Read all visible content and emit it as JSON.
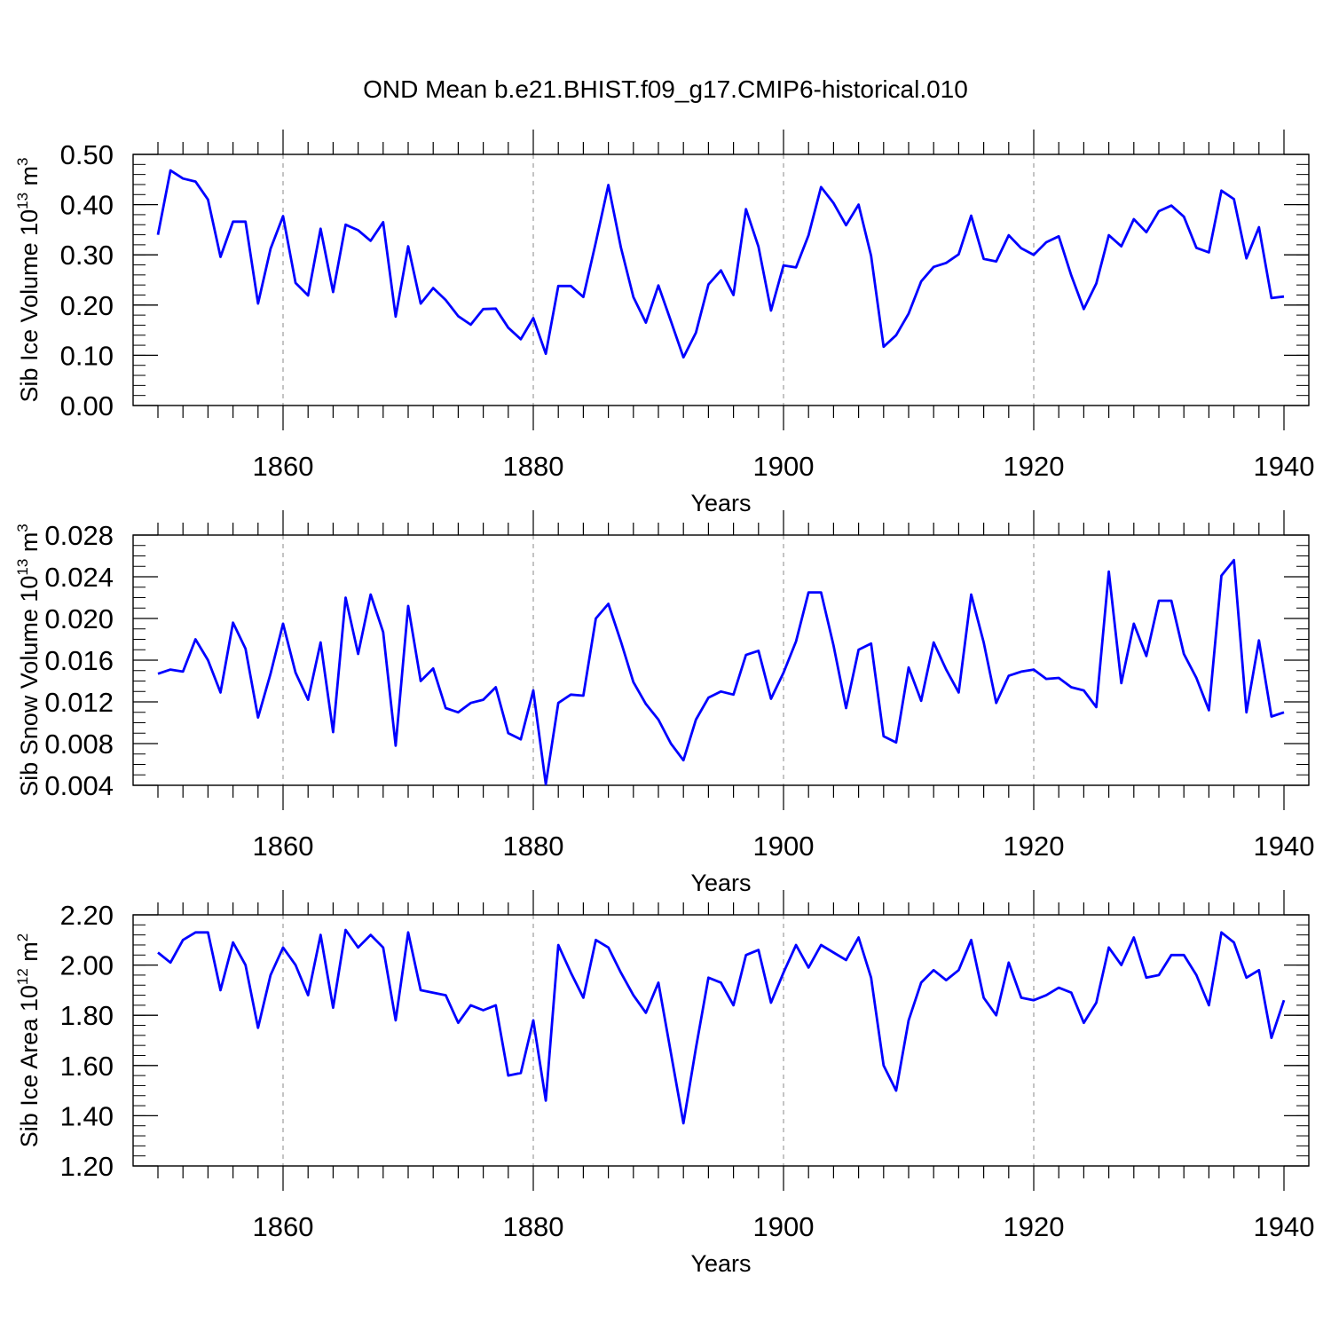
{
  "title": "OND Mean b.e21.BHIST.f09_g17.CMIP6-historical.010",
  "line_color": "#0000ff",
  "chart_data": [
    {
      "type": "line",
      "ylabel_main": "Sib Ice Volume 10",
      "ylabel_exp": "13",
      "ylabel_unit": "m",
      "ylabel_unit_exp": "3",
      "xlabel": "Years",
      "xlim": [
        1850,
        1940
      ],
      "ylim": [
        0.0,
        0.5
      ],
      "ymajor": [
        0.0,
        0.1,
        0.2,
        0.3,
        0.4,
        0.5
      ],
      "ytick_labels": [
        "0.00",
        "0.10",
        "0.20",
        "0.30",
        "0.40",
        "0.50"
      ],
      "yminor_step": 0.02,
      "xticks": [
        1860,
        1880,
        1900,
        1920,
        1940
      ],
      "xtick_labels": [
        "1860",
        "1880",
        "1900",
        "1920",
        "1940"
      ],
      "grid": "vertical dashed at 1860, 1880, 1900, 1920",
      "x_start": 1850,
      "series": [
        {
          "values": [
            0.34,
            0.468,
            0.452,
            0.446,
            0.41,
            0.296,
            0.366,
            0.366,
            0.203,
            0.312,
            0.377,
            0.244,
            0.219,
            0.352,
            0.226,
            0.36,
            0.349,
            0.328,
            0.365,
            0.177,
            0.317,
            0.203,
            0.234,
            0.21,
            0.178,
            0.161,
            0.192,
            0.193,
            0.155,
            0.132,
            0.174,
            0.103,
            0.238,
            0.238,
            0.216,
            0.325,
            0.439,
            0.315,
            0.216,
            0.165,
            0.239,
            0.168,
            0.096,
            0.145,
            0.241,
            0.269,
            0.22,
            0.391,
            0.316,
            0.189,
            0.279,
            0.275,
            0.339,
            0.435,
            0.403,
            0.359,
            0.4,
            0.298,
            0.117,
            0.14,
            0.183,
            0.247,
            0.276,
            0.284,
            0.301,
            0.378,
            0.292,
            0.287,
            0.339,
            0.313,
            0.3,
            0.325,
            0.337,
            0.259,
            0.192,
            0.243,
            0.339,
            0.317,
            0.371,
            0.345,
            0.387,
            0.398,
            0.376,
            0.314,
            0.305,
            0.428,
            0.411,
            0.293,
            0.355,
            0.214,
            0.217
          ]
        }
      ]
    },
    {
      "type": "line",
      "ylabel_main": "Sib Snow Volume 10",
      "ylabel_exp": "13",
      "ylabel_unit": "m",
      "ylabel_unit_exp": "3",
      "xlabel": "Years",
      "xlim": [
        1850,
        1940
      ],
      "ylim": [
        0.004,
        0.028
      ],
      "ymajor": [
        0.004,
        0.008,
        0.012,
        0.016,
        0.02,
        0.024,
        0.028
      ],
      "ytick_labels": [
        "0.004",
        "0.008",
        "0.012",
        "0.016",
        "0.020",
        "0.024",
        "0.028"
      ],
      "yminor_step": 0.001,
      "xticks": [
        1860,
        1880,
        1900,
        1920,
        1940
      ],
      "xtick_labels": [
        "1860",
        "1880",
        "1900",
        "1920",
        "1940"
      ],
      "grid": "vertical dashed at 1860, 1880, 1900, 1920",
      "x_start": 1850,
      "series": [
        {
          "values": [
            0.0147,
            0.0151,
            0.0149,
            0.018,
            0.016,
            0.0129,
            0.0196,
            0.0171,
            0.0105,
            0.0147,
            0.0195,
            0.0148,
            0.0122,
            0.0177,
            0.0091,
            0.022,
            0.0166,
            0.0223,
            0.0187,
            0.0078,
            0.0212,
            0.014,
            0.0152,
            0.0114,
            0.011,
            0.0119,
            0.0122,
            0.0134,
            0.009,
            0.0084,
            0.0131,
            0.0041,
            0.0119,
            0.0127,
            0.0126,
            0.02,
            0.0214,
            0.0178,
            0.0139,
            0.0118,
            0.0103,
            0.008,
            0.0064,
            0.0103,
            0.0124,
            0.013,
            0.0127,
            0.0165,
            0.0169,
            0.0123,
            0.0148,
            0.0178,
            0.0225,
            0.0225,
            0.0174,
            0.0114,
            0.017,
            0.0176,
            0.0087,
            0.0081,
            0.0153,
            0.0121,
            0.0177,
            0.0151,
            0.0129,
            0.0223,
            0.0177,
            0.0119,
            0.0145,
            0.0149,
            0.0151,
            0.0142,
            0.0143,
            0.0134,
            0.0131,
            0.0115,
            0.0245,
            0.0138,
            0.0195,
            0.0164,
            0.0217,
            0.0217,
            0.0166,
            0.0143,
            0.0112,
            0.0241,
            0.0256,
            0.011,
            0.0179,
            0.0106,
            0.011
          ]
        }
      ]
    },
    {
      "type": "line",
      "ylabel_main": "Sib Ice Area 10",
      "ylabel_exp": "12",
      "ylabel_unit": "m",
      "ylabel_unit_exp": "2",
      "xlabel": "Years",
      "xlim": [
        1850,
        1940
      ],
      "ylim": [
        1.2,
        2.2
      ],
      "ymajor": [
        1.2,
        1.4,
        1.6,
        1.8,
        2.0,
        2.2
      ],
      "ytick_labels": [
        "1.20",
        "1.40",
        "1.60",
        "1.80",
        "2.00",
        "2.20"
      ],
      "yminor_step": 0.04,
      "xticks": [
        1860,
        1880,
        1900,
        1920,
        1940
      ],
      "xtick_labels": [
        "1860",
        "1880",
        "1900",
        "1920",
        "1940"
      ],
      "grid": "vertical dashed at 1860, 1880, 1900, 1920",
      "x_start": 1850,
      "series": [
        {
          "values": [
            2.05,
            2.01,
            2.1,
            2.13,
            2.13,
            1.9,
            2.09,
            2.0,
            1.75,
            1.96,
            2.07,
            2.0,
            1.88,
            2.12,
            1.83,
            2.14,
            2.07,
            2.12,
            2.07,
            1.78,
            2.13,
            1.9,
            1.89,
            1.88,
            1.77,
            1.84,
            1.82,
            1.84,
            1.56,
            1.57,
            1.78,
            1.46,
            2.08,
            1.97,
            1.87,
            2.1,
            2.07,
            1.97,
            1.88,
            1.81,
            1.93,
            1.65,
            1.37,
            1.67,
            1.95,
            1.93,
            1.84,
            2.04,
            2.06,
            1.85,
            1.97,
            2.08,
            1.99,
            2.08,
            2.05,
            2.02,
            2.11,
            1.95,
            1.6,
            1.5,
            1.78,
            1.93,
            1.98,
            1.94,
            1.98,
            2.1,
            1.87,
            1.8,
            2.01,
            1.87,
            1.86,
            1.88,
            1.91,
            1.89,
            1.77,
            1.85,
            2.07,
            2.0,
            2.11,
            1.95,
            1.96,
            2.04,
            2.04,
            1.96,
            1.84,
            2.13,
            2.09,
            1.95,
            1.98,
            1.71,
            1.86
          ]
        }
      ]
    }
  ]
}
